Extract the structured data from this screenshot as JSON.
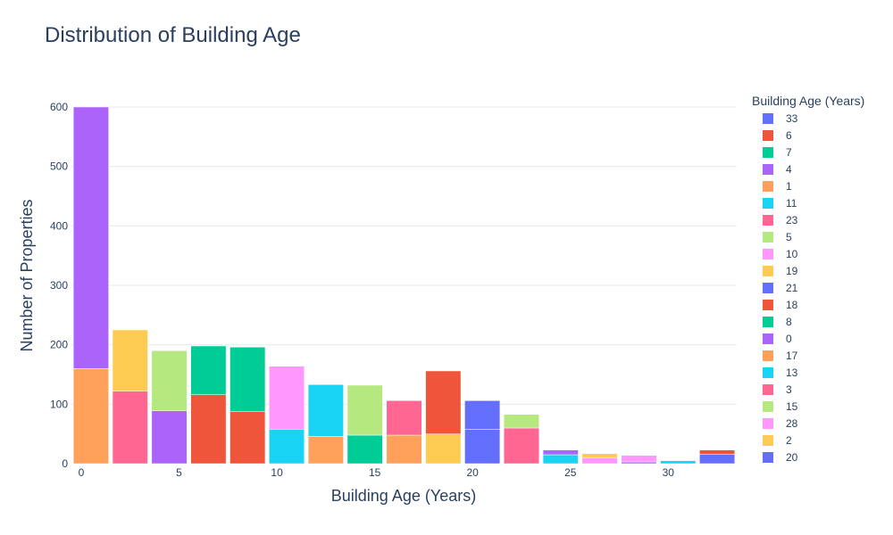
{
  "chart_data": {
    "type": "bar",
    "title": "Distribution of Building Age",
    "xlabel": "Building Age (Years)",
    "ylabel": "Number of Properties",
    "xlim": [
      -0.5,
      33.5
    ],
    "ylim": [
      0,
      600
    ],
    "xticks": [
      0,
      5,
      10,
      15,
      20,
      25,
      30
    ],
    "yticks": [
      0,
      100,
      200,
      300,
      400,
      500,
      600
    ],
    "grid": true,
    "legend_title": "Building Age (Years)",
    "legend_position": "right",
    "bar_width_years": 1.8,
    "series": [
      {
        "name": "33",
        "color": "#636efa",
        "bars": [
          {
            "x": 32.5,
            "value": 16
          }
        ]
      },
      {
        "name": "6",
        "color": "#EF553B",
        "bars": [
          {
            "x": 6.5,
            "value": 116
          },
          {
            "x": 32.5,
            "value": 7
          }
        ]
      },
      {
        "name": "7",
        "color": "#00cc96",
        "bars": [
          {
            "x": 6.5,
            "value": 82
          }
        ]
      },
      {
        "name": "4",
        "color": "#ab63fa",
        "bars": [
          {
            "x": 4.5,
            "value": 89
          }
        ]
      },
      {
        "name": "1",
        "color": "#FFA15A",
        "bars": [
          {
            "x": 0.5,
            "value": 160
          }
        ]
      },
      {
        "name": "11",
        "color": "#19d3f3",
        "bars": [
          {
            "x": 10.5,
            "value": 58
          },
          {
            "x": 24.5,
            "value": 15
          }
        ]
      },
      {
        "name": "23",
        "color": "#FF6692",
        "bars": [
          {
            "x": 22.5,
            "value": 60
          }
        ]
      },
      {
        "name": "5",
        "color": "#B6E880",
        "bars": [
          {
            "x": 4.5,
            "value": 101
          },
          {
            "x": 22.5,
            "value": 23
          }
        ]
      },
      {
        "name": "10",
        "color": "#FF97FF",
        "bars": [
          {
            "x": 10.5,
            "value": 106
          }
        ]
      },
      {
        "name": "19",
        "color": "#FECB52",
        "bars": [
          {
            "x": 18.5,
            "value": 50
          }
        ]
      },
      {
        "name": "21",
        "color": "#636efa",
        "bars": [
          {
            "x": 20.5,
            "value": 58
          }
        ]
      },
      {
        "name": "18",
        "color": "#EF553B",
        "bars": [
          {
            "x": 8.5,
            "value": 88
          },
          {
            "x": 18.5,
            "value": 106
          }
        ]
      },
      {
        "name": "8",
        "color": "#00cc96",
        "bars": [
          {
            "x": 8.5,
            "value": 108
          },
          {
            "x": 14.5,
            "value": 48
          }
        ]
      },
      {
        "name": "0",
        "color": "#ab63fa",
        "bars": [
          {
            "x": 0.5,
            "value": 440
          },
          {
            "x": 24.5,
            "value": 8
          },
          {
            "x": 28.5,
            "value": 3
          }
        ]
      },
      {
        "name": "17",
        "color": "#FFA15A",
        "bars": [
          {
            "x": 12.5,
            "value": 46
          },
          {
            "x": 16.5,
            "value": 48
          }
        ]
      },
      {
        "name": "13",
        "color": "#19d3f3",
        "bars": [
          {
            "x": 12.5,
            "value": 87
          },
          {
            "x": 30.5,
            "value": 5
          }
        ]
      },
      {
        "name": "3",
        "color": "#FF6692",
        "bars": [
          {
            "x": 2.5,
            "value": 122
          },
          {
            "x": 16.5,
            "value": 58
          }
        ]
      },
      {
        "name": "15",
        "color": "#B6E880",
        "bars": [
          {
            "x": 14.5,
            "value": 84
          }
        ]
      },
      {
        "name": "28",
        "color": "#FF97FF",
        "bars": [
          {
            "x": 26.5,
            "value": 10
          },
          {
            "x": 28.5,
            "value": 11
          }
        ]
      },
      {
        "name": "2",
        "color": "#FECB52",
        "bars": [
          {
            "x": 2.5,
            "value": 103
          },
          {
            "x": 26.5,
            "value": 7
          }
        ]
      },
      {
        "name": "20",
        "color": "#636efa",
        "bars": [
          {
            "x": 20.5,
            "value": 48
          }
        ]
      }
    ]
  }
}
